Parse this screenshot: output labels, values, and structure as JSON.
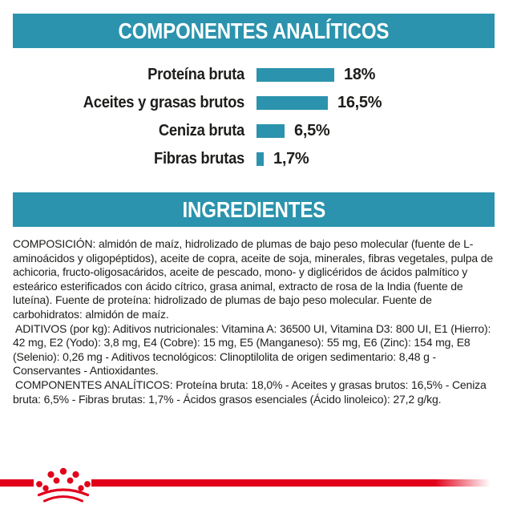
{
  "colors": {
    "teal": "#2b93ad",
    "red": "#e2001a",
    "text": "#1d1d1b"
  },
  "analytical_header": {
    "title": "COMPONENTES ANALÍTICOS"
  },
  "chart_data": {
    "type": "bar",
    "orientation": "horizontal",
    "title": "COMPONENTES ANALÍTICOS",
    "categories": [
      "Proteína bruta",
      "Aceites y grasas brutos",
      "Ceniza bruta",
      "Fibras brutas"
    ],
    "values": [
      18,
      16.5,
      6.5,
      1.7
    ],
    "value_labels": [
      "18%",
      "16,5%",
      "6,5%",
      "1,7%"
    ],
    "unit": "%",
    "xlim": [
      0,
      18
    ],
    "bar_color": "#2b93ad",
    "grid": false,
    "legend": false
  },
  "ingredients_header": {
    "title": "INGREDIENTES"
  },
  "ingredients": {
    "paragraphs": [
      "COMPOSICIÓN: almidón de maíz, hidrolizado de plumas de bajo peso molecular (fuente de L-aminoácidos y oligopéptidos), aceite de copra, aceite de soja, minerales, fibras vegetales, pulpa de achicoria, fructo-oligosacáridos, aceite de pescado, mono- y diglicéridos de ácidos palmítico y esteárico esterificados con ácido cítrico, grasa animal, extracto de rosa de la India (fuente de luteína). Fuente de proteína: hidrolizado de plumas de bajo peso molecular. Fuente de carbohidratos: almidón de maíz.",
      "ADITIVOS (por kg): Aditivos nutricionales: Vitamina A: 36500 UI, Vitamina D3: 800 UI, E1 (Hierro): 42 mg, E2 (Yodo): 3,8 mg, E4 (Cobre): 15 mg, E5 (Manganeso): 55 mg, E6 (Zinc): 154 mg, E8 (Selenio): 0,26 mg - Aditivos tecnológicos: Clinoptilolita de origen sedimentario: 8,48 g - Conservantes - Antioxidantes.",
      "COMPONENTES ANALÍTICOS: Proteína bruta: 18,0% - Aceites y grasas brutos: 16,5% - Ceniza bruta: 6,5% - Fibras brutas: 1,7% - Ácidos grasos esenciales (Ácido linoleico): 27,2 g/kg."
    ]
  },
  "footer": {
    "brand_logo": "royal-canin-crown"
  }
}
